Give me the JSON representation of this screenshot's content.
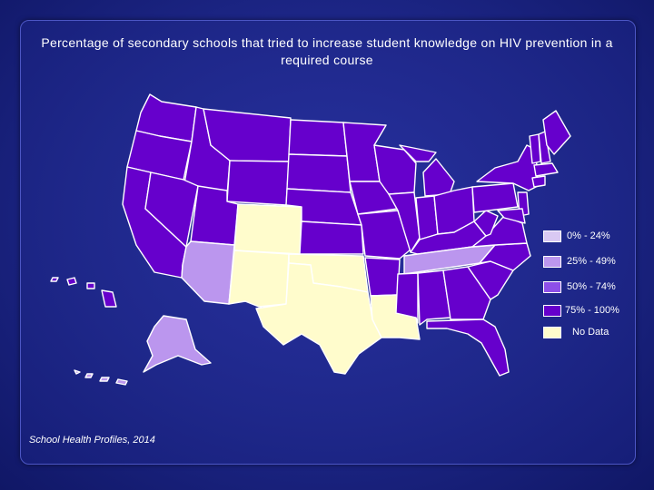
{
  "title": "Percentage of secondary schools that tried to increase student knowledge on HIV prevention in a required course",
  "source": "School Health Profiles, 2014",
  "legend": [
    {
      "label": "0% - 24%",
      "color": "#d9c9f3"
    },
    {
      "label": "25% - 49%",
      "color": "#bb96ee"
    },
    {
      "label": "50% - 74%",
      "color": "#8d4fe8"
    },
    {
      "label": "75% - 100%",
      "color": "#6600cc"
    },
    {
      "label": "No Data",
      "color": "#fffccc"
    }
  ],
  "map_data": {
    "category_colors": {
      "25% - 49%": "#bb96ee",
      "75% - 100%": "#6600cc",
      "No Data": "#fffccc"
    },
    "states_25_49": [
      "Arizona",
      "Tennessee",
      "Alaska"
    ],
    "states_no_data": [
      "Colorado",
      "New Mexico",
      "Oklahoma",
      "Texas",
      "Louisiana"
    ],
    "states_75_100": "all other states shown"
  }
}
